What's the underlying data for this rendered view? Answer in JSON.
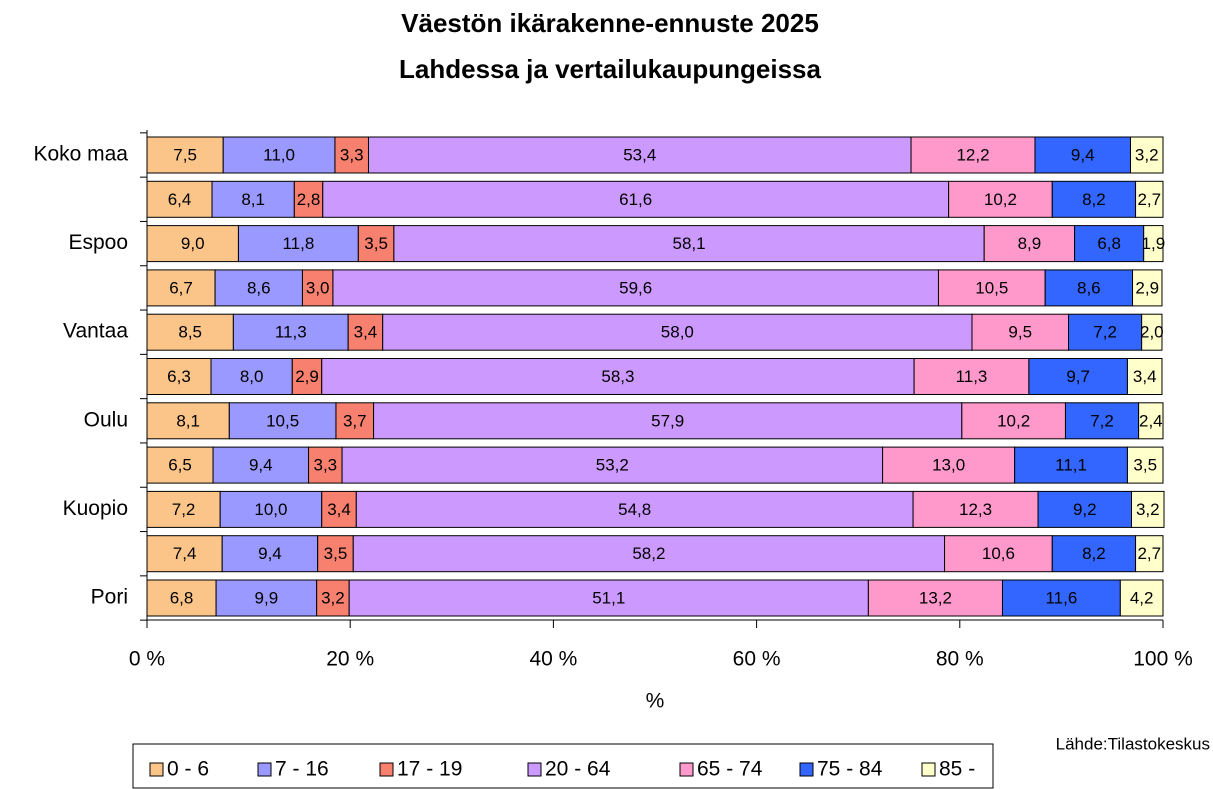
{
  "chart_data": {
    "type": "stacked_bar_horizontal",
    "title": "Väestön ikärakenne-ennuste 2025",
    "subtitle": "Lahdessa ja vertailukaupungeissa",
    "x_label": "%",
    "source": "Lähde:Tilastokeskus",
    "categories": [
      "Koko maa",
      null,
      "Espoo",
      null,
      "Vantaa",
      null,
      "Oulu",
      null,
      "Kuopio",
      null,
      "Pori"
    ],
    "xlim": [
      0,
      100
    ],
    "xticks": [
      {
        "value": 0,
        "label": "0 %"
      },
      {
        "value": 20,
        "label": "20 %"
      },
      {
        "value": 40,
        "label": "40 %"
      },
      {
        "value": 60,
        "label": "60 %"
      },
      {
        "value": 80,
        "label": "80 %"
      },
      {
        "value": 100,
        "label": "100 %"
      }
    ],
    "legend": "bottom",
    "series": [
      {
        "name": "0 - 6",
        "color": "#fbc58a",
        "values": [
          7.5,
          6.4,
          9.0,
          6.7,
          8.5,
          6.3,
          8.1,
          6.5,
          7.2,
          7.4,
          6.8
        ],
        "value_labels": [
          "7,5",
          "6,4",
          "9,0",
          "6,7",
          "8,5",
          "6,3",
          "8,1",
          "6,5",
          "7,2",
          "7,4",
          "6,8"
        ]
      },
      {
        "name": "7 - 16",
        "color": "#9999ff",
        "values": [
          11.0,
          8.1,
          11.8,
          8.6,
          11.3,
          8.0,
          10.5,
          9.4,
          10.0,
          9.4,
          9.9
        ],
        "value_labels": [
          "11,0",
          "8,1",
          "11,8",
          "8,6",
          "11,3",
          "8,0",
          "10,5",
          "9,4",
          "10,0",
          "9,4",
          "9,9"
        ]
      },
      {
        "name": "17 - 19",
        "color": "#f7806f",
        "values": [
          3.3,
          2.8,
          3.5,
          3.0,
          3.4,
          2.9,
          3.7,
          3.3,
          3.4,
          3.5,
          3.2
        ],
        "value_labels": [
          "3,3",
          "2,8",
          "3,5",
          "3,0",
          "3,4",
          "2,9",
          "3,7",
          "3,3",
          "3,4",
          "3,5",
          "3,2"
        ]
      },
      {
        "name": "20 - 64",
        "color": "#cc99ff",
        "values": [
          53.4,
          61.6,
          58.1,
          59.6,
          58.0,
          58.3,
          57.9,
          53.2,
          54.8,
          58.2,
          51.1
        ],
        "value_labels": [
          "53,4",
          "61,6",
          "58,1",
          "59,6",
          "58,0",
          "58,3",
          "57,9",
          "53,2",
          "54,8",
          "58,2",
          "51,1"
        ]
      },
      {
        "name": "65 - 74",
        "color": "#ff99cc",
        "values": [
          12.2,
          10.2,
          8.9,
          10.5,
          9.5,
          11.3,
          10.2,
          13.0,
          12.3,
          10.6,
          13.2
        ],
        "value_labels": [
          "12,2",
          "10,2",
          "8,9",
          "10,5",
          "9,5",
          "11,3",
          "10,2",
          "13,0",
          "12,3",
          "10,6",
          "13,2"
        ]
      },
      {
        "name": "75 - 84",
        "color": "#3366ff",
        "values": [
          9.4,
          8.2,
          6.8,
          8.6,
          7.2,
          9.7,
          7.2,
          11.1,
          9.2,
          8.2,
          11.6
        ],
        "value_labels": [
          "9,4",
          "8,2",
          "6,8",
          "8,6",
          "7,2",
          "9,7",
          "7,2",
          "11,1",
          "9,2",
          "8,2",
          "11,6"
        ]
      },
      {
        "name": "85 -",
        "color": "#ffffcc",
        "values": [
          3.2,
          2.7,
          1.9,
          2.9,
          2.0,
          3.4,
          2.4,
          3.5,
          3.2,
          2.7,
          4.2
        ],
        "value_labels": [
          "3,2",
          "2,7",
          "1,9",
          "2,9",
          "2,0",
          "3,4",
          "2,4",
          "3,5",
          "3,2",
          "2,7",
          "4,2"
        ]
      }
    ]
  }
}
